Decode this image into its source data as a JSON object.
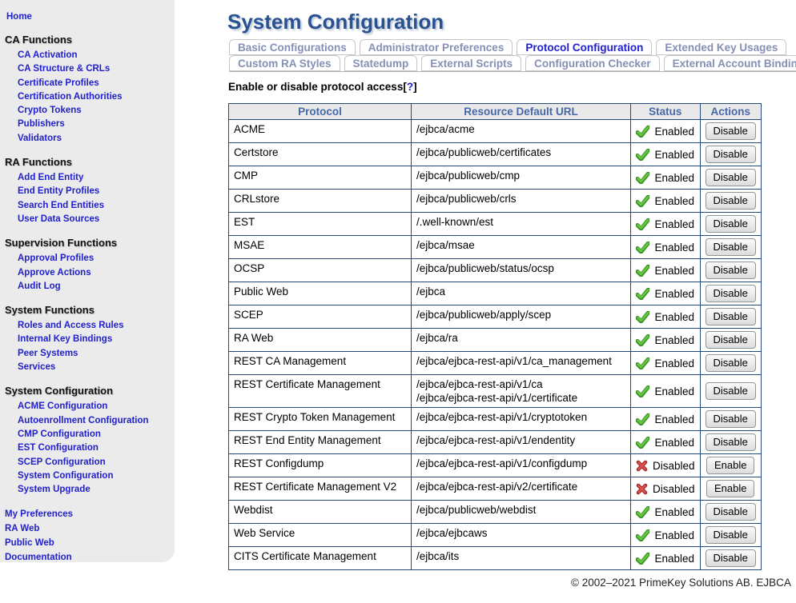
{
  "sidebar": {
    "home": "Home",
    "sections": [
      {
        "title": "CA Functions",
        "items": [
          "CA Activation",
          "CA Structure &amp; CRLs",
          "Certificate Profiles",
          "Certification Authorities",
          "Crypto Tokens",
          "Publishers",
          "Validators"
        ]
      },
      {
        "title": "RA Functions",
        "items": [
          "Add End Entity",
          "End Entity Profiles",
          "Search End Entities",
          "User Data Sources"
        ]
      },
      {
        "title": "Supervision Functions",
        "items": [
          "Approval Profiles",
          "Approve Actions",
          "Audit Log"
        ]
      },
      {
        "title": "System Functions",
        "items": [
          "Roles and Access Rules",
          "Internal Key Bindings",
          "Peer Systems",
          "Services"
        ]
      },
      {
        "title": "System Configuration",
        "items": [
          "ACME Configuration",
          "Autoenrollment Configuration",
          "CMP Configuration",
          "EST Configuration",
          "SCEP Configuration",
          "System Configuration",
          "System Upgrade"
        ]
      }
    ],
    "footer_links": [
      "My Preferences",
      "RA Web",
      "Public Web",
      "Documentation"
    ]
  },
  "header": {
    "title": "System Configuration"
  },
  "tabs": {
    "row1": [
      {
        "label": "Basic Configurations",
        "active": false
      },
      {
        "label": "Administrator Preferences",
        "active": false
      },
      {
        "label": "Protocol Configuration",
        "active": true
      },
      {
        "label": "Extended Key Usages",
        "active": false
      }
    ],
    "row2": [
      {
        "label": "Custom RA Styles",
        "active": false
      },
      {
        "label": "Statedump",
        "active": false
      },
      {
        "label": "External Scripts",
        "active": false
      },
      {
        "label": "Configuration Checker",
        "active": false
      },
      {
        "label": "External Account Bindings",
        "active": false
      }
    ]
  },
  "content": {
    "section_label": "Enable or disable protocol access",
    "help_prefix": "[",
    "help_label": "?",
    "help_suffix": "]"
  },
  "table": {
    "headers": [
      "Protocol",
      "Resource Default URL",
      "Status",
      "Actions"
    ],
    "status_enabled_label": "Enabled",
    "status_disabled_label": "Disabled",
    "icons": {
      "enabled": "check-icon",
      "disabled": "cross-icon"
    },
    "rows": [
      {
        "protocol": "ACME",
        "urls": [
          "/ejbca/acme"
        ],
        "enabled": true,
        "status": "Enabled",
        "action": "Disable"
      },
      {
        "protocol": "Certstore",
        "urls": [
          "/ejbca/publicweb/certificates"
        ],
        "enabled": true,
        "status": "Enabled",
        "action": "Disable"
      },
      {
        "protocol": "CMP",
        "urls": [
          "/ejbca/publicweb/cmp"
        ],
        "enabled": true,
        "status": "Enabled",
        "action": "Disable"
      },
      {
        "protocol": "CRLstore",
        "urls": [
          "/ejbca/publicweb/crls"
        ],
        "enabled": true,
        "status": "Enabled",
        "action": "Disable"
      },
      {
        "protocol": "EST",
        "urls": [
          "/.well-known/est"
        ],
        "enabled": true,
        "status": "Enabled",
        "action": "Disable"
      },
      {
        "protocol": "MSAE",
        "urls": [
          "/ejbca/msae"
        ],
        "enabled": true,
        "status": "Enabled",
        "action": "Disable"
      },
      {
        "protocol": "OCSP",
        "urls": [
          "/ejbca/publicweb/status/ocsp"
        ],
        "enabled": true,
        "status": "Enabled",
        "action": "Disable"
      },
      {
        "protocol": "Public Web",
        "urls": [
          "/ejbca"
        ],
        "enabled": true,
        "status": "Enabled",
        "action": "Disable"
      },
      {
        "protocol": "SCEP",
        "urls": [
          "/ejbca/publicweb/apply/scep"
        ],
        "enabled": true,
        "status": "Enabled",
        "action": "Disable"
      },
      {
        "protocol": "RA Web",
        "urls": [
          "/ejbca/ra"
        ],
        "enabled": true,
        "status": "Enabled",
        "action": "Disable"
      },
      {
        "protocol": "REST CA Management",
        "urls": [
          "/ejbca/ejbca-rest-api/v1/ca_management"
        ],
        "enabled": true,
        "status": "Enabled",
        "action": "Disable"
      },
      {
        "protocol": "REST Certificate Management",
        "urls": [
          "/ejbca/ejbca-rest-api/v1/ca",
          "/ejbca/ejbca-rest-api/v1/certificate"
        ],
        "enabled": true,
        "status": "Enabled",
        "action": "Disable"
      },
      {
        "protocol": "REST Crypto Token Management",
        "urls": [
          "/ejbca/ejbca-rest-api/v1/cryptotoken"
        ],
        "enabled": true,
        "status": "Enabled",
        "action": "Disable"
      },
      {
        "protocol": "REST End Entity Management",
        "urls": [
          "/ejbca/ejbca-rest-api/v1/endentity"
        ],
        "enabled": true,
        "status": "Enabled",
        "action": "Disable"
      },
      {
        "protocol": "REST Configdump",
        "urls": [
          "/ejbca/ejbca-rest-api/v1/configdump"
        ],
        "enabled": false,
        "status": "Disabled",
        "action": "Enable"
      },
      {
        "protocol": "REST Certificate Management V2",
        "urls": [
          "/ejbca/ejbca-rest-api/v2/certificate"
        ],
        "enabled": false,
        "status": "Disabled",
        "action": "Enable"
      },
      {
        "protocol": "Webdist",
        "urls": [
          "/ejbca/publicweb/webdist"
        ],
        "enabled": true,
        "status": "Enabled",
        "action": "Disable"
      },
      {
        "protocol": "Web Service",
        "urls": [
          "/ejbca/ejbcaws"
        ],
        "enabled": true,
        "status": "Enabled",
        "action": "Disable"
      },
      {
        "protocol": "CITS Certificate Management",
        "urls": [
          "/ejbca/its"
        ],
        "enabled": true,
        "status": "Enabled",
        "action": "Disable"
      }
    ]
  },
  "footer": {
    "copyright": "© 2002–2021 PrimeKey Solutions AB. EJBCA"
  },
  "colors": {
    "link_blue": "#2121cc",
    "title_blue": "#2a5291",
    "table_border": "#26497c",
    "header_text": "#4768a8",
    "header_bg": "#e9e9e9",
    "sidebar_bg": "#ebebeb",
    "active_tab": "#1f1fd0",
    "inactive_tab": "#8590b5",
    "enabled_green": "#64c83c",
    "disabled_red": "#c43c3c"
  }
}
